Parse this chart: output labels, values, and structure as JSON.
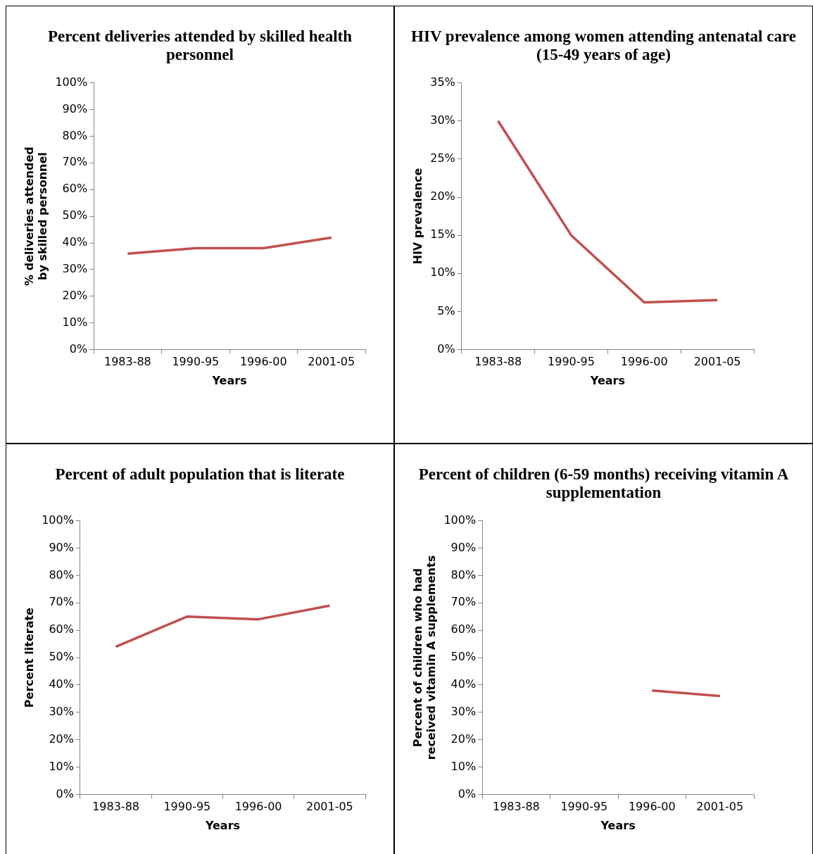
{
  "chart_data": [
    {
      "type": "line",
      "title": "Percent deliveries attended by skilled health personnel",
      "xlabel": "Years",
      "ylabel": "% deliveries attended by skilled personnel",
      "categories": [
        "1983-88",
        "1990-95",
        "1996-00",
        "2001-05"
      ],
      "values": [
        36,
        38,
        38,
        42
      ],
      "color": "#c0504d",
      "ylim": [
        0,
        100
      ],
      "yticks": [
        {
          "value": 0,
          "label": "0%"
        },
        {
          "value": 10,
          "label": "10%"
        },
        {
          "value": 20,
          "label": "20%"
        },
        {
          "value": 30,
          "label": "30%"
        },
        {
          "value": 40,
          "label": "40%"
        },
        {
          "value": 50,
          "label": "50%"
        },
        {
          "value": 60,
          "label": "60%"
        },
        {
          "value": 70,
          "label": "70%"
        },
        {
          "value": 80,
          "label": "80%"
        },
        {
          "value": 90,
          "label": "90%"
        },
        {
          "value": 100,
          "label": "100%"
        }
      ]
    },
    {
      "type": "line",
      "title": "HIV prevalence among women attending antenatal care (15-49 years of age)",
      "xlabel": "Years",
      "ylabel": "HIV prevalence",
      "categories": [
        "1983-88",
        "1990-95",
        "1996-00",
        "2001-05"
      ],
      "values": [
        30,
        15,
        6.2,
        6.5
      ],
      "color": "#c0504d",
      "ylim": [
        0,
        35
      ],
      "yticks": [
        {
          "value": 0,
          "label": "0%"
        },
        {
          "value": 5,
          "label": "5%"
        },
        {
          "value": 10,
          "label": "10%"
        },
        {
          "value": 15,
          "label": "15%"
        },
        {
          "value": 20,
          "label": "20%"
        },
        {
          "value": 25,
          "label": "25%"
        },
        {
          "value": 30,
          "label": "30%"
        },
        {
          "value": 35,
          "label": "35%"
        }
      ]
    },
    {
      "type": "line",
      "title": "Percent of adult population that is literate",
      "xlabel": "Years",
      "ylabel": "Percent literate",
      "categories": [
        "1983-88",
        "1990-95",
        "1996-00",
        "2001-05"
      ],
      "values": [
        54,
        65,
        64,
        69
      ],
      "color": "#c0504d",
      "ylim": [
        0,
        100
      ],
      "yticks": [
        {
          "value": 0,
          "label": "0%"
        },
        {
          "value": 10,
          "label": "10%"
        },
        {
          "value": 20,
          "label": "20%"
        },
        {
          "value": 30,
          "label": "30%"
        },
        {
          "value": 40,
          "label": "40%"
        },
        {
          "value": 50,
          "label": "50%"
        },
        {
          "value": 60,
          "label": "60%"
        },
        {
          "value": 70,
          "label": "70%"
        },
        {
          "value": 80,
          "label": "80%"
        },
        {
          "value": 90,
          "label": "90%"
        },
        {
          "value": 100,
          "label": "100%"
        }
      ]
    },
    {
      "type": "line",
      "title": "Percent of children (6-59 months) receiving vitamin A supplementation",
      "xlabel": "Years",
      "ylabel": "Percent of children who had received vitamin A supplements",
      "categories": [
        "1983-88",
        "1990-95",
        "1996-00",
        "2001-05"
      ],
      "values": [
        null,
        null,
        38,
        36
      ],
      "color": "#c0504d",
      "ylim": [
        0,
        100
      ],
      "yticks": [
        {
          "value": 0,
          "label": "0%"
        },
        {
          "value": 10,
          "label": "10%"
        },
        {
          "value": 20,
          "label": "20%"
        },
        {
          "value": 30,
          "label": "30%"
        },
        {
          "value": 40,
          "label": "40%"
        },
        {
          "value": 50,
          "label": "50%"
        },
        {
          "value": 60,
          "label": "60%"
        },
        {
          "value": 70,
          "label": "70%"
        },
        {
          "value": 80,
          "label": "80%"
        },
        {
          "value": 90,
          "label": "90%"
        },
        {
          "value": 100,
          "label": "100%"
        }
      ]
    }
  ]
}
